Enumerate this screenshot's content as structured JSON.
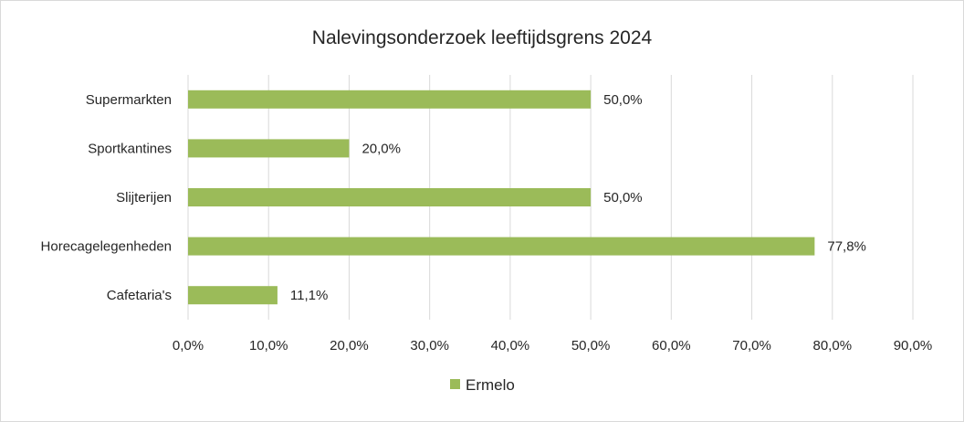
{
  "chart_data": {
    "type": "bar",
    "orientation": "horizontal",
    "title": "Nalevingsonderzoek leeftijdsgrens 2024",
    "categories": [
      "Supermarkten",
      "Sportkantines",
      "Slijterijen",
      "Horecagelegenheden",
      "Cafetaria's"
    ],
    "series": [
      {
        "name": "Ermelo",
        "values": [
          50.0,
          20.0,
          50.0,
          77.8,
          11.1
        ],
        "labels": [
          "50,0%",
          "20,0%",
          "50,0%",
          "77,8%",
          "11,1%"
        ],
        "color": "#9bbb59"
      }
    ],
    "xlim": [
      0,
      90
    ],
    "x_ticks": [
      0,
      10,
      20,
      30,
      40,
      50,
      60,
      70,
      80,
      90
    ],
    "x_tick_labels": [
      "0,0%",
      "10,0%",
      "20,0%",
      "30,0%",
      "40,0%",
      "50,0%",
      "60,0%",
      "70,0%",
      "80,0%",
      "90,0%"
    ],
    "grid": "vertical",
    "legend_position": "bottom",
    "gridline_color": "#d9d9d9"
  }
}
